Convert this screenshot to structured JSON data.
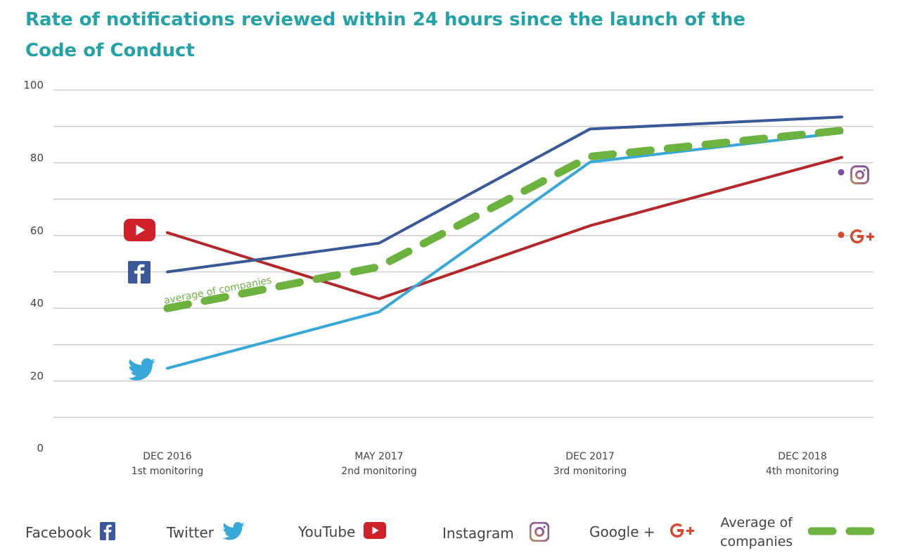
{
  "title": "Rate of notifications reviewed within 24 hours since the launch of the Code of Conduct",
  "chart_data": {
    "type": "line",
    "title": "Rate of notifications reviewed within 24 hours since the launch of the Code of Conduct",
    "categories": [
      {
        "line1": "DEC 2016",
        "line2": "1st monitoring"
      },
      {
        "line1": "MAY 2017",
        "line2": "2nd monitoring"
      },
      {
        "line1": "DEC 2017",
        "line2": "3rd monitoring"
      },
      {
        "line1": "DEC 2018",
        "line2": "4th monitoring"
      }
    ],
    "yticks": [
      0,
      20,
      40,
      60,
      80,
      100
    ],
    "ylim": [
      0,
      100
    ],
    "grid": true,
    "series": [
      {
        "name": "Facebook",
        "color": "#3b5998",
        "values": [
          50,
          57.9,
          89.3,
          92.6
        ],
        "dashed": false,
        "icon": "facebook-icon"
      },
      {
        "name": "Twitter",
        "color": "#37a8d8",
        "values": [
          23.5,
          39,
          80.2,
          88.3
        ],
        "dashed": false,
        "icon": "twitter-icon"
      },
      {
        "name": "YouTube",
        "color": "#b5282a",
        "values": [
          60.8,
          42.6,
          62.7,
          81.5
        ],
        "dashed": false,
        "icon": "youtube-icon"
      },
      {
        "name": "Average of companies",
        "color": "#6bb23e",
        "values": [
          40,
          51.4,
          81.7,
          88.9
        ],
        "dashed": true
      },
      {
        "name": "Instagram",
        "color": "#7b4fa0",
        "values": [
          null,
          null,
          null,
          77.4
        ],
        "dashed": false,
        "icon": "instagram-icon"
      },
      {
        "name": "Google +",
        "color": "#d9472f",
        "values": [
          null,
          null,
          null,
          60.2
        ],
        "dashed": false,
        "icon": "google-plus-icon"
      }
    ],
    "annotation": "average of companies"
  },
  "legend": [
    {
      "label": "Facebook",
      "icon": "facebook-icon"
    },
    {
      "label": "Twitter",
      "icon": "twitter-icon"
    },
    {
      "label": "YouTube",
      "icon": "youtube-icon"
    },
    {
      "label": "Instagram",
      "icon": "instagram-icon"
    },
    {
      "label": "Google +",
      "icon": "google-plus-icon"
    },
    {
      "label_line1": "Average of",
      "label_line2": "companies",
      "swatch": "green-dashes"
    }
  ],
  "colors": {
    "title": "#23a3a8",
    "facebook": "#3b5998",
    "twitter": "#37a8d8",
    "youtube": "#d0202a",
    "instagram": "#7b4fa0",
    "google": "#d9472f",
    "average": "#6bb23e",
    "grid": "#d0d0d0"
  }
}
